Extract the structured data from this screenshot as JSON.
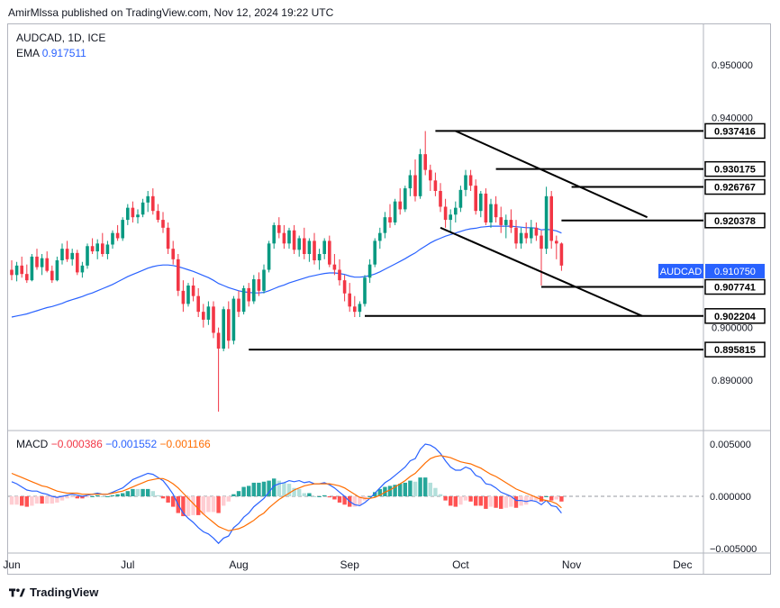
{
  "header": {
    "publish_text": "AmirMlssa published on TradingView.com, Nov 12, 2024 19:22 UTC"
  },
  "legend": {
    "symbol": "AUDCAD, 1D, ICE",
    "ema_label": "EMA",
    "ema_value": "0.917511"
  },
  "macd_legend": {
    "label": "MACD",
    "hist": "−0.000386",
    "macd": "−0.001552",
    "signal": "−0.001166"
  },
  "footer": {
    "brand": "TradingView"
  },
  "colors": {
    "up": "#089981",
    "down": "#f23645",
    "ema": "#2962ff",
    "signal": "#ff6d00",
    "grid_sep": "#b2b5be"
  },
  "chart_data": {
    "type": "candlestick",
    "title": "AUDCAD, 1D, ICE",
    "price_axis": {
      "ylim": [
        0.885,
        0.955
      ],
      "ticks": [
        "0.950000",
        "0.940000",
        "0.900000",
        "0.890000"
      ]
    },
    "time_axis": {
      "labels": [
        "Jun",
        "Jul",
        "Aug",
        "Sep",
        "Oct",
        "Nov",
        "Dec"
      ],
      "label_index": [
        0,
        23,
        45,
        67,
        89,
        111,
        133
      ]
    },
    "ohlc": [
      [
        0.911,
        0.9128,
        0.909,
        0.91
      ],
      [
        0.91,
        0.9125,
        0.9088,
        0.9118
      ],
      [
        0.9118,
        0.9135,
        0.9095,
        0.9102
      ],
      [
        0.9102,
        0.912,
        0.9085,
        0.909
      ],
      [
        0.909,
        0.914,
        0.9088,
        0.9135
      ],
      [
        0.9135,
        0.915,
        0.911,
        0.9115
      ],
      [
        0.9115,
        0.914,
        0.91,
        0.9132
      ],
      [
        0.9132,
        0.9145,
        0.9105,
        0.9108
      ],
      [
        0.9108,
        0.9118,
        0.9085,
        0.909
      ],
      [
        0.909,
        0.9135,
        0.9088,
        0.9128
      ],
      [
        0.9128,
        0.916,
        0.912,
        0.915
      ],
      [
        0.915,
        0.9165,
        0.9125,
        0.913
      ],
      [
        0.913,
        0.915,
        0.9118,
        0.9142
      ],
      [
        0.9142,
        0.9148,
        0.91,
        0.9105
      ],
      [
        0.9105,
        0.9125,
        0.9095,
        0.9118
      ],
      [
        0.9118,
        0.916,
        0.9112,
        0.9155
      ],
      [
        0.9155,
        0.917,
        0.914,
        0.9145
      ],
      [
        0.9145,
        0.9168,
        0.913,
        0.916
      ],
      [
        0.916,
        0.918,
        0.9135,
        0.914
      ],
      [
        0.914,
        0.9165,
        0.913,
        0.9158
      ],
      [
        0.9158,
        0.9185,
        0.915,
        0.918
      ],
      [
        0.918,
        0.9195,
        0.9165,
        0.917
      ],
      [
        0.917,
        0.921,
        0.9165,
        0.9205
      ],
      [
        0.9205,
        0.9235,
        0.9195,
        0.9228
      ],
      [
        0.9228,
        0.924,
        0.92,
        0.921
      ],
      [
        0.921,
        0.9225,
        0.9198,
        0.9215
      ],
      [
        0.9215,
        0.9245,
        0.921,
        0.9238
      ],
      [
        0.9238,
        0.926,
        0.922,
        0.925
      ],
      [
        0.925,
        0.9265,
        0.9215,
        0.9222
      ],
      [
        0.9222,
        0.9235,
        0.92,
        0.9205
      ],
      [
        0.9205,
        0.922,
        0.918,
        0.919
      ],
      [
        0.919,
        0.92,
        0.914,
        0.915
      ],
      [
        0.915,
        0.9165,
        0.912,
        0.913
      ],
      [
        0.913,
        0.914,
        0.906,
        0.907
      ],
      [
        0.907,
        0.909,
        0.903,
        0.9045
      ],
      [
        0.9045,
        0.9085,
        0.904,
        0.908
      ],
      [
        0.908,
        0.9095,
        0.905,
        0.906
      ],
      [
        0.906,
        0.9075,
        0.902,
        0.903
      ],
      [
        0.903,
        0.9045,
        0.9,
        0.9015
      ],
      [
        0.9015,
        0.905,
        0.9005,
        0.904
      ],
      [
        0.904,
        0.905,
        0.898,
        0.899
      ],
      [
        0.899,
        0.9,
        0.884,
        0.896
      ],
      [
        0.896,
        0.904,
        0.8955,
        0.9035
      ],
      [
        0.9035,
        0.905,
        0.896,
        0.8975
      ],
      [
        0.8975,
        0.906,
        0.8968,
        0.9055
      ],
      [
        0.9055,
        0.907,
        0.902,
        0.903
      ],
      [
        0.903,
        0.908,
        0.9025,
        0.9075
      ],
      [
        0.9075,
        0.9085,
        0.904,
        0.905
      ],
      [
        0.905,
        0.91,
        0.9045,
        0.9092
      ],
      [
        0.9092,
        0.9105,
        0.906,
        0.907
      ],
      [
        0.907,
        0.912,
        0.9065,
        0.911
      ],
      [
        0.911,
        0.9165,
        0.9105,
        0.916
      ],
      [
        0.916,
        0.92,
        0.915,
        0.9195
      ],
      [
        0.9195,
        0.921,
        0.917,
        0.918
      ],
      [
        0.918,
        0.9195,
        0.915,
        0.916
      ],
      [
        0.916,
        0.919,
        0.915,
        0.9185
      ],
      [
        0.9185,
        0.9195,
        0.914,
        0.9148
      ],
      [
        0.9148,
        0.9175,
        0.9135,
        0.917
      ],
      [
        0.917,
        0.919,
        0.913,
        0.914
      ],
      [
        0.914,
        0.917,
        0.9125,
        0.9165
      ],
      [
        0.9165,
        0.918,
        0.912,
        0.9128
      ],
      [
        0.9128,
        0.915,
        0.911,
        0.914
      ],
      [
        0.914,
        0.917,
        0.913,
        0.9165
      ],
      [
        0.9165,
        0.9175,
        0.9115,
        0.912
      ],
      [
        0.912,
        0.914,
        0.91,
        0.911
      ],
      [
        0.911,
        0.913,
        0.908,
        0.909
      ],
      [
        0.909,
        0.91,
        0.905,
        0.9065
      ],
      [
        0.9065,
        0.9085,
        0.903,
        0.904
      ],
      [
        0.904,
        0.906,
        0.902,
        0.903
      ],
      [
        0.903,
        0.905,
        0.902,
        0.9045
      ],
      [
        0.9045,
        0.91,
        0.904,
        0.9095
      ],
      [
        0.9095,
        0.913,
        0.9085,
        0.912
      ],
      [
        0.912,
        0.917,
        0.9115,
        0.9165
      ],
      [
        0.9165,
        0.919,
        0.915,
        0.918
      ],
      [
        0.918,
        0.922,
        0.917,
        0.921
      ],
      [
        0.921,
        0.9235,
        0.919,
        0.92
      ],
      [
        0.92,
        0.9245,
        0.9195,
        0.924
      ],
      [
        0.924,
        0.9265,
        0.9215,
        0.9225
      ],
      [
        0.9225,
        0.927,
        0.922,
        0.9265
      ],
      [
        0.9265,
        0.93,
        0.925,
        0.929
      ],
      [
        0.929,
        0.932,
        0.924,
        0.925
      ],
      [
        0.925,
        0.934,
        0.9245,
        0.933
      ],
      [
        0.933,
        0.9374,
        0.929,
        0.93
      ],
      [
        0.93,
        0.931,
        0.926,
        0.928
      ],
      [
        0.928,
        0.9295,
        0.925,
        0.926
      ],
      [
        0.926,
        0.9275,
        0.922,
        0.923
      ],
      [
        0.923,
        0.9245,
        0.919,
        0.9205
      ],
      [
        0.9205,
        0.9225,
        0.918,
        0.9215
      ],
      [
        0.9215,
        0.924,
        0.92,
        0.9228
      ],
      [
        0.9228,
        0.927,
        0.922,
        0.9262
      ],
      [
        0.9262,
        0.93,
        0.925,
        0.929
      ],
      [
        0.929,
        0.93,
        0.926,
        0.927
      ],
      [
        0.927,
        0.9282,
        0.9215,
        0.9222
      ],
      [
        0.9222,
        0.926,
        0.921,
        0.9255
      ],
      [
        0.9255,
        0.9265,
        0.9195,
        0.92
      ],
      [
        0.92,
        0.9245,
        0.919,
        0.9235
      ],
      [
        0.9235,
        0.925,
        0.92,
        0.921
      ],
      [
        0.921,
        0.923,
        0.918,
        0.9195
      ],
      [
        0.9195,
        0.9215,
        0.917,
        0.9205
      ],
      [
        0.9205,
        0.9225,
        0.918,
        0.919
      ],
      [
        0.919,
        0.9205,
        0.915,
        0.916
      ],
      [
        0.916,
        0.919,
        0.915,
        0.918
      ],
      [
        0.918,
        0.92,
        0.916,
        0.917
      ],
      [
        0.917,
        0.9205,
        0.916,
        0.919
      ],
      [
        0.919,
        0.92,
        0.9165,
        0.9175
      ],
      [
        0.9175,
        0.9185,
        0.908,
        0.915
      ],
      [
        0.915,
        0.9268,
        0.914,
        0.925
      ],
      [
        0.925,
        0.926,
        0.915,
        0.9165
      ],
      [
        0.9165,
        0.9175,
        0.913,
        0.916
      ],
      [
        0.916,
        0.9162,
        0.9108,
        0.9118
      ]
    ],
    "ema": [
      0.902,
      0.9022,
      0.9024,
      0.9026,
      0.9029,
      0.9032,
      0.9035,
      0.9038,
      0.904,
      0.9043,
      0.9046,
      0.905,
      0.9053,
      0.9056,
      0.9059,
      0.9063,
      0.9066,
      0.907,
      0.9074,
      0.9078,
      0.9082,
      0.9087,
      0.9092,
      0.9097,
      0.9101,
      0.9105,
      0.9109,
      0.9113,
      0.9116,
      0.9118,
      0.9119,
      0.9119,
      0.9118,
      0.9116,
      0.9113,
      0.911,
      0.9107,
      0.9103,
      0.9099,
      0.9095,
      0.909,
      0.9084,
      0.908,
      0.9076,
      0.9073,
      0.907,
      0.9068,
      0.9067,
      0.9066,
      0.9066,
      0.9067,
      0.907,
      0.9074,
      0.9078,
      0.9081,
      0.9085,
      0.9088,
      0.9091,
      0.9094,
      0.9097,
      0.9099,
      0.9101,
      0.9103,
      0.9104,
      0.9104,
      0.9103,
      0.9101,
      0.9098,
      0.9096,
      0.9096,
      0.9097,
      0.9099,
      0.9102,
      0.9106,
      0.9111,
      0.9116,
      0.9121,
      0.9126,
      0.9131,
      0.9137,
      0.9142,
      0.9149,
      0.9155,
      0.9161,
      0.9166,
      0.917,
      0.9174,
      0.9177,
      0.918,
      0.9183,
      0.9186,
      0.9188,
      0.9189,
      0.9191,
      0.9192,
      0.9193,
      0.9193,
      0.9193,
      0.9193,
      0.9193,
      0.9192,
      0.9191,
      0.919,
      0.919,
      0.9189,
      0.9186,
      0.9187,
      0.9186,
      0.9184,
      0.918
    ],
    "levels": [
      {
        "label": "0.937416",
        "value": 0.937416,
        "from": 84
      },
      {
        "label": "0.930175",
        "value": 0.930175,
        "from": 96
      },
      {
        "label": "0.926767",
        "value": 0.926767,
        "from": 111
      },
      {
        "label": "0.920378",
        "value": 0.920378,
        "from": 109
      },
      {
        "label": "0.907741",
        "value": 0.907741,
        "from": 105
      },
      {
        "label": "0.902204",
        "value": 0.902204,
        "from": 70
      },
      {
        "label": "0.895815",
        "value": 0.895815,
        "from": 47
      }
    ],
    "trendlines": [
      {
        "from": [
          88,
          0.93741
        ],
        "to": [
          126,
          0.921
        ]
      },
      {
        "from": [
          85,
          0.919
        ],
        "to": [
          125,
          0.9022
        ]
      }
    ],
    "last_price": {
      "symbol": "AUDCAD",
      "value": "0.910750"
    },
    "macd_axis": {
      "ylim": [
        -0.0055,
        0.0062
      ],
      "ticks": [
        "0.005000",
        "0.000000",
        "−0.005000"
      ]
    },
    "macd": [
      0.0014,
      0.0012,
      0.0009,
      0.0006,
      0.0005,
      0.0005,
      0.0003,
      0.0002,
      0.0,
      -0.0001,
      0.0,
      0.0001,
      0.0002,
      0.0001,
      0.0,
      0.0001,
      0.0002,
      0.0003,
      0.0002,
      0.0002,
      0.0004,
      0.0006,
      0.0008,
      0.0012,
      0.0016,
      0.0018,
      0.002,
      0.0022,
      0.0021,
      0.0018,
      0.0015,
      0.0009,
      0.0002,
      -0.0008,
      -0.0016,
      -0.0021,
      -0.0025,
      -0.003,
      -0.0034,
      -0.0036,
      -0.004,
      -0.0045,
      -0.004,
      -0.0038,
      -0.003,
      -0.0026,
      -0.002,
      -0.0016,
      -0.001,
      -0.0006,
      -0.0002,
      0.0004,
      0.001,
      0.0012,
      0.0013,
      0.0015,
      0.0014,
      0.0015,
      0.0013,
      0.0014,
      0.0012,
      0.0012,
      0.0013,
      0.0011,
      0.0008,
      0.0004,
      0.0,
      -0.0005,
      -0.0008,
      -0.0009,
      -0.0006,
      -0.0002,
      0.0003,
      0.0008,
      0.0013,
      0.0016,
      0.002,
      0.0024,
      0.0028,
      0.0034,
      0.0036,
      0.0045,
      0.005,
      0.0049,
      0.0046,
      0.0041,
      0.0034,
      0.0028,
      0.0025,
      0.0025,
      0.0028,
      0.0026,
      0.002,
      0.0018,
      0.0012,
      0.0011,
      0.0008,
      0.0004,
      0.0002,
      0.0,
      -0.0004,
      -0.0004,
      -0.0005,
      -0.0004,
      -0.0005,
      -0.0008,
      -0.0004,
      -0.0009,
      -0.001,
      -0.0016
    ],
    "signal": [
      0.0022,
      0.002,
      0.0018,
      0.0016,
      0.0014,
      0.0012,
      0.001,
      0.0009,
      0.0007,
      0.0005,
      0.0004,
      0.0003,
      0.0003,
      0.0003,
      0.0002,
      0.0002,
      0.0002,
      0.0002,
      0.0002,
      0.0002,
      0.0003,
      0.0004,
      0.0005,
      0.0007,
      0.0009,
      0.0011,
      0.0013,
      0.0015,
      0.0016,
      0.0017,
      0.0017,
      0.0015,
      0.0012,
      0.0008,
      0.0003,
      -0.0002,
      -0.0007,
      -0.0012,
      -0.0017,
      -0.0021,
      -0.0025,
      -0.0029,
      -0.0031,
      -0.0033,
      -0.0032,
      -0.0031,
      -0.0029,
      -0.0026,
      -0.0023,
      -0.0019,
      -0.0016,
      -0.0011,
      -0.0007,
      -0.0003,
      0.0,
      0.0003,
      0.0006,
      0.0008,
      0.001,
      0.0011,
      0.0012,
      0.0012,
      0.0012,
      0.0012,
      0.0011,
      0.001,
      0.0008,
      0.0005,
      0.0002,
      -0.0001,
      -0.0002,
      -0.0002,
      -0.0001,
      0.0001,
      0.0004,
      0.0006,
      0.0009,
      0.0012,
      0.0015,
      0.0019,
      0.0022,
      0.0027,
      0.0032,
      0.0036,
      0.0038,
      0.0039,
      0.0038,
      0.0037,
      0.0035,
      0.0033,
      0.0032,
      0.0031,
      0.0029,
      0.0027,
      0.0024,
      0.0021,
      0.0019,
      0.0016,
      0.0013,
      0.001,
      0.0007,
      0.0005,
      0.0003,
      0.0001,
      -0.0001,
      -0.0003,
      -0.0004,
      -0.0005,
      -0.0007,
      -0.0011
    ]
  }
}
